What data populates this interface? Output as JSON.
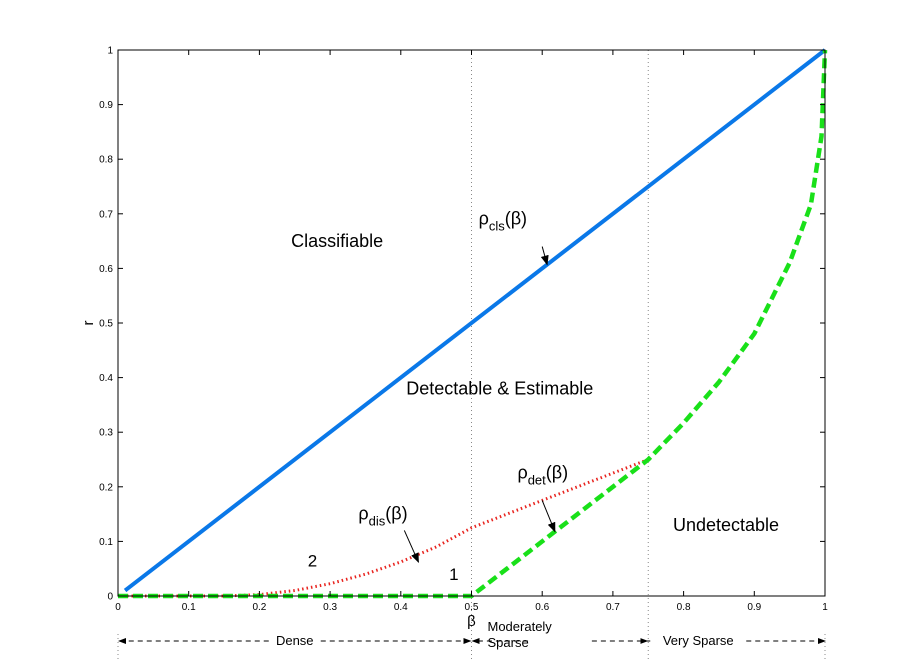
{
  "chart_data": {
    "type": "line",
    "title": "",
    "xlabel": "β",
    "ylabel": "r",
    "xlim": [
      0,
      1
    ],
    "ylim": [
      0,
      1
    ],
    "xticks": [
      0,
      0.1,
      0.2,
      0.3,
      0.4,
      0.5,
      0.6,
      0.7,
      0.8,
      0.9,
      1
    ],
    "yticks": [
      0,
      0.1,
      0.2,
      0.3,
      0.4,
      0.5,
      0.6,
      0.7,
      0.8,
      0.9,
      1
    ],
    "xtick_labels": [
      "0",
      "0.1",
      "0.2",
      "0.3",
      "0.4",
      "0.5",
      "0.6",
      "0.7",
      "0.8",
      "0.9",
      "1"
    ],
    "ytick_labels": [
      "0",
      "0.1",
      "0.2",
      "0.3",
      "0.4",
      "0.5",
      "0.6",
      "0.7",
      "0.8",
      "0.9",
      "1"
    ],
    "grid": false,
    "vlines": [
      0.5,
      0.75
    ],
    "series": [
      {
        "id": "cls",
        "label": "ρ",
        "label_sub": "cls",
        "label_arg": "(β)",
        "style": "solid",
        "color": "#0a78e8",
        "x": [
          0.01,
          1
        ],
        "y": [
          0.01,
          1
        ]
      },
      {
        "id": "dis",
        "label": "ρ",
        "label_sub": "dis",
        "label_arg": "(β)",
        "style": "dotted",
        "color": "#e8231e",
        "x": [
          0,
          0.05,
          0.1,
          0.15,
          0.2,
          0.25,
          0.3,
          0.35,
          0.4,
          0.45,
          0.5,
          0.55,
          0.6,
          0.65,
          0.7,
          0.75
        ],
        "y": [
          0,
          0,
          0,
          0,
          0.0025,
          0.01,
          0.0225,
          0.04,
          0.0625,
          0.09,
          0.125,
          0.15,
          0.175,
          0.2,
          0.225,
          0.25
        ]
      },
      {
        "id": "det",
        "label": "ρ",
        "label_sub": "det",
        "label_arg": "(β)",
        "style": "dashed",
        "color": "#19e019",
        "x": [
          0,
          0.1,
          0.2,
          0.3,
          0.4,
          0.5,
          0.55,
          0.6,
          0.65,
          0.7,
          0.75,
          0.8,
          0.85,
          0.9,
          0.95,
          0.98,
          0.995,
          1
        ],
        "y": [
          0,
          0,
          0,
          0,
          0,
          0,
          0.05,
          0.1,
          0.15,
          0.2,
          0.25,
          0.3169,
          0.3917,
          0.4804,
          0.6101,
          0.7171,
          0.8417,
          1
        ]
      }
    ],
    "annotations": {
      "regions": [
        {
          "text": "Classifiable",
          "x": 0.31,
          "y": 0.65
        },
        {
          "text": "Detectable & Estimable",
          "x": 0.54,
          "y": 0.38
        },
        {
          "text": "Undetectable",
          "x": 0.86,
          "y": 0.13
        }
      ],
      "numbers": [
        {
          "text": "2",
          "x": 0.275,
          "y": 0.065
        },
        {
          "text": "1",
          "x": 0.475,
          "y": 0.04
        }
      ],
      "curve_labels": [
        {
          "series": "cls",
          "x": 0.51,
          "y": 0.68,
          "arrow_to": [
            0.607,
            0.607
          ],
          "arrow_from": [
            0.6,
            0.64
          ]
        },
        {
          "series": "dis",
          "x": 0.34,
          "y": 0.14,
          "arrow_to": [
            0.425,
            0.062
          ],
          "arrow_from": [
            0.405,
            0.12
          ]
        },
        {
          "series": "det",
          "x": 0.565,
          "y": 0.215,
          "arrow_to": [
            0.618,
            0.118
          ],
          "arrow_from": [
            0.6,
            0.175
          ]
        }
      ],
      "bands": [
        {
          "text": "Dense",
          "from": 0,
          "to": 0.5
        },
        {
          "text": "Moderately",
          "text2": "Sparse",
          "from": 0.5,
          "to": 0.75
        },
        {
          "text": "Very Sparse",
          "from": 0.75,
          "to": 1
        }
      ]
    }
  }
}
